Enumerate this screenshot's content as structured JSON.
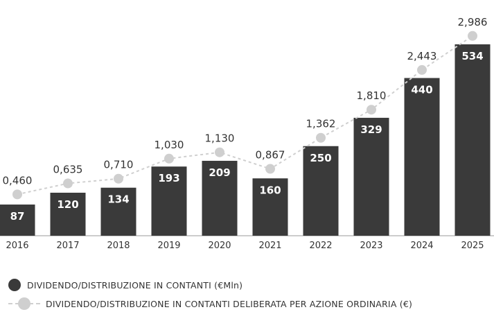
{
  "chart_data": {
    "type": "bar",
    "categories": [
      "2016",
      "2017",
      "2018",
      "2019",
      "2020",
      "2021",
      "2022",
      "2023",
      "2024",
      "2025"
    ],
    "series": [
      {
        "name": "DIVIDENDO/DISTRIBUZIONE IN CONTANTI (€Mln)",
        "type": "bar",
        "values": [
          87,
          120,
          134,
          193,
          209,
          160,
          250,
          329,
          440,
          534
        ],
        "labels": [
          "87",
          "120",
          "134",
          "193",
          "209",
          "160",
          "250",
          "329",
          "440",
          "534"
        ],
        "color": "#3a3a3a"
      },
      {
        "name": "DIVIDENDO/DISTRIBUZIONE IN CONTANTI DELIBERATA PER AZIONE ORDINARIA (€)",
        "type": "line",
        "values": [
          0.46,
          0.635,
          0.71,
          1.03,
          1.13,
          0.867,
          1.362,
          1.81,
          2.443,
          2.986
        ],
        "labels": [
          "0,460",
          "0,635",
          "0,710",
          "1,030",
          "1,130",
          "0,867",
          "1,362",
          "1,810",
          "2,443",
          "2,986"
        ],
        "color": "#cfcfcf"
      }
    ],
    "legend": "bottom-left",
    "grid": false,
    "ylim_bars": [
      0,
      600
    ],
    "ylim_line": [
      0,
      3.2
    ]
  },
  "legend": {
    "bars_label": "DIVIDENDO/DISTRIBUZIONE IN CONTANTI (€Mln)",
    "line_label": "DIVIDENDO/DISTRIBUZIONE IN CONTANTI DELIBERATA PER AZIONE ORDINARIA (€)"
  }
}
